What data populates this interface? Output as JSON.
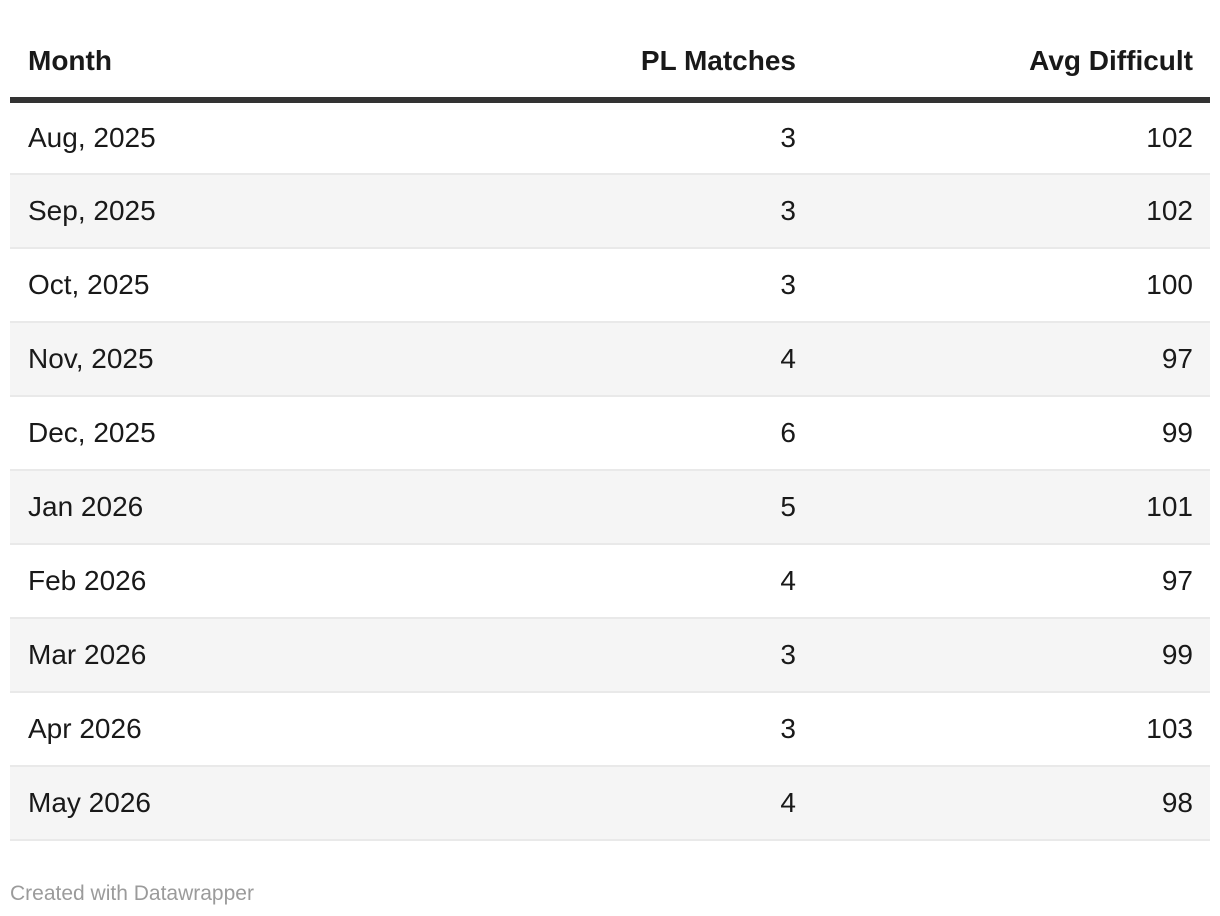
{
  "table": {
    "columns": [
      {
        "label": "Month",
        "align": "left"
      },
      {
        "label": "PL Matches",
        "align": "right"
      },
      {
        "label": "Avg Difficult",
        "align": "right"
      }
    ],
    "rows": [
      {
        "month": "Aug, 2025",
        "pl_matches": "3",
        "avg_difficult": "102"
      },
      {
        "month": "Sep, 2025",
        "pl_matches": "3",
        "avg_difficult": "102"
      },
      {
        "month": "Oct, 2025",
        "pl_matches": "3",
        "avg_difficult": "100"
      },
      {
        "month": "Nov, 2025",
        "pl_matches": "4",
        "avg_difficult": "97"
      },
      {
        "month": "Dec, 2025",
        "pl_matches": "6",
        "avg_difficult": "99"
      },
      {
        "month": "Jan 2026",
        "pl_matches": "5",
        "avg_difficult": "101"
      },
      {
        "month": "Feb 2026",
        "pl_matches": "4",
        "avg_difficult": "97"
      },
      {
        "month": "Mar 2026",
        "pl_matches": "3",
        "avg_difficult": "99"
      },
      {
        "month": "Apr 2026",
        "pl_matches": "3",
        "avg_difficult": "103"
      },
      {
        "month": "May 2026",
        "pl_matches": "4",
        "avg_difficult": "98"
      }
    ]
  },
  "footer": {
    "attribution": "Created with Datawrapper"
  },
  "colors": {
    "background": "#ffffff",
    "text": "#191919",
    "header_border": "#333333",
    "row_stripe": "#f5f5f5",
    "row_divider": "#e9e9e9",
    "attribution_text": "#9b9b9b"
  },
  "chart_data": {
    "type": "table",
    "title": "",
    "columns": [
      "Month",
      "PL Matches",
      "Avg Difficult"
    ],
    "rows": [
      [
        "Aug, 2025",
        3,
        102
      ],
      [
        "Sep, 2025",
        3,
        102
      ],
      [
        "Oct, 2025",
        3,
        100
      ],
      [
        "Nov, 2025",
        4,
        97
      ],
      [
        "Dec, 2025",
        6,
        99
      ],
      [
        "Jan 2026",
        5,
        101
      ],
      [
        "Feb 2026",
        4,
        97
      ],
      [
        "Mar 2026",
        3,
        99
      ],
      [
        "Apr 2026",
        3,
        103
      ],
      [
        "May 2026",
        4,
        98
      ]
    ],
    "layout_hints": {
      "striped_rows": "even rows (2nd, 4th, ...) shaded",
      "numeric_columns_right_aligned": true,
      "header_rule": "thick dark line under header"
    }
  }
}
